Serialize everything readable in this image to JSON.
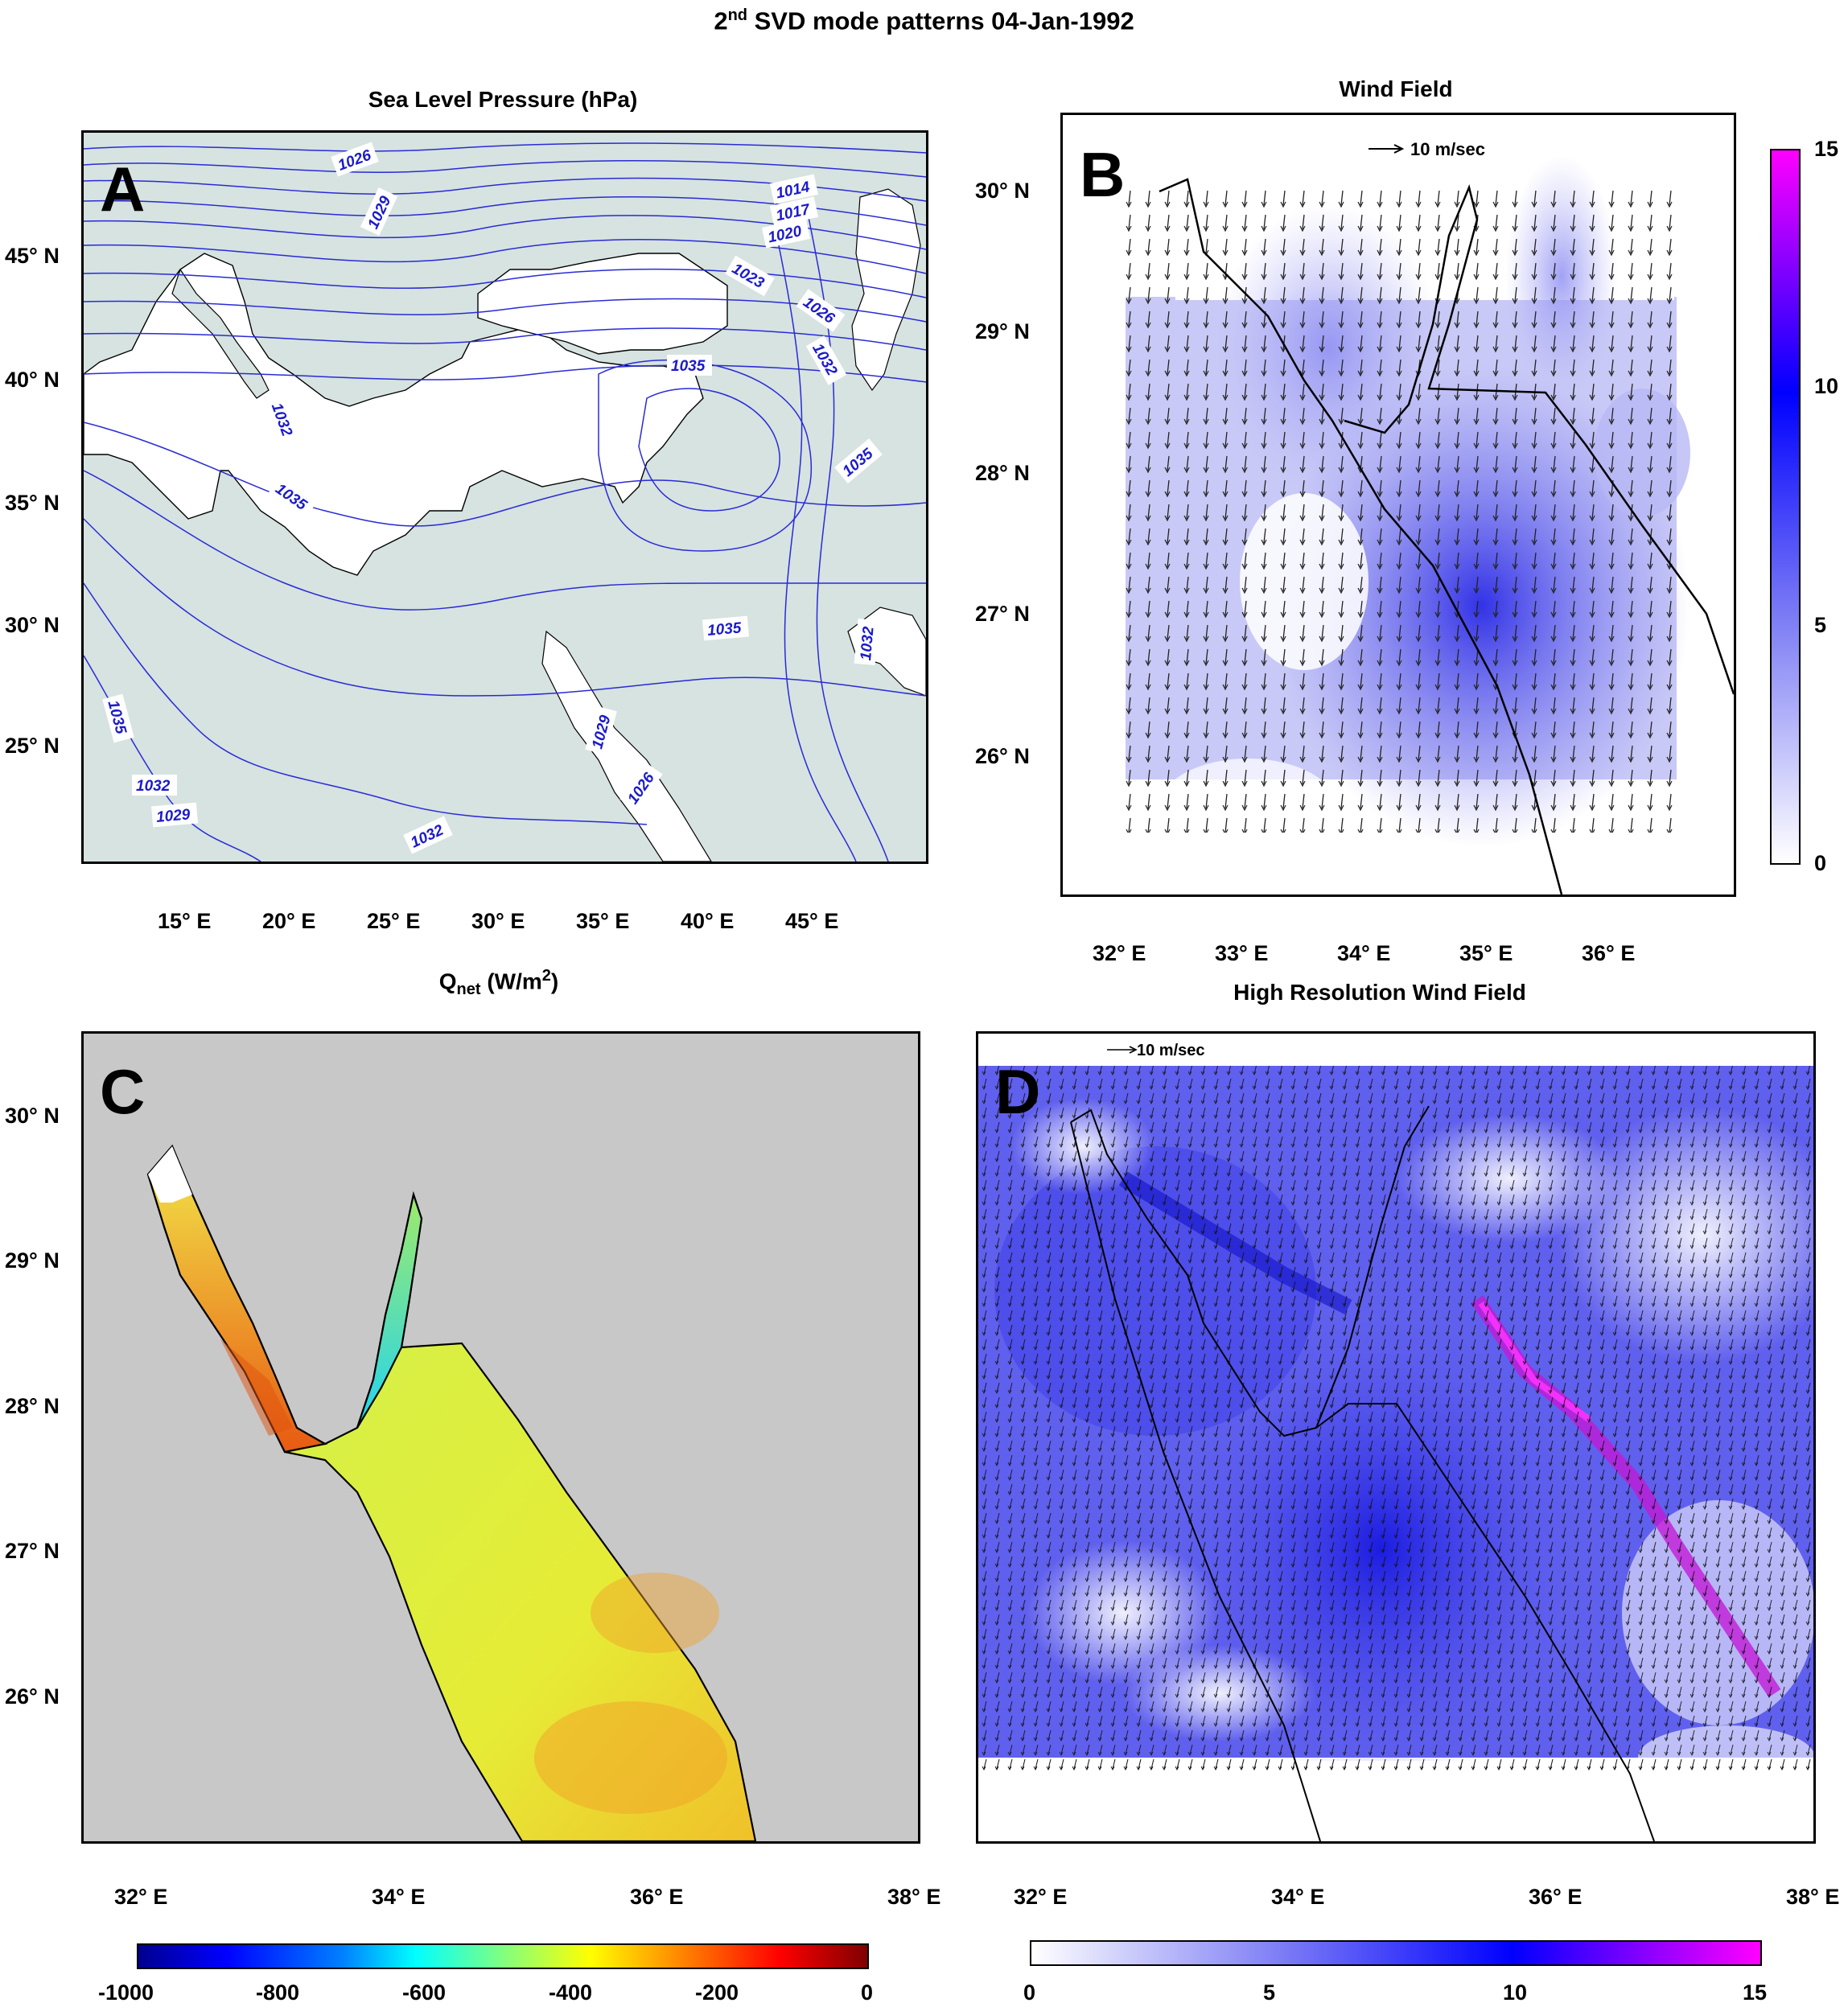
{
  "figure": {
    "title_main": "2",
    "title_sup": "nd",
    "title_rest": " SVD mode patterns 04-Jan-1992"
  },
  "panel_a": {
    "letter": "A",
    "title": "Sea Level Pressure (hPa)",
    "lat_ticks": [
      "45° N",
      "40° N",
      "35° N",
      "30° N",
      "25° N"
    ],
    "lon_ticks": [
      "15° E",
      "20° E",
      "25° E",
      "30° E",
      "35° E",
      "40° E",
      "45° E"
    ],
    "contour_labels": [
      "1026",
      "1029",
      "1014",
      "1017",
      "1020",
      "1023",
      "1026",
      "1032",
      "1035",
      "1032",
      "1035",
      "1035",
      "1035",
      "1032",
      "1035",
      "1032",
      "1029",
      "1029",
      "1026",
      "1032"
    ],
    "colors": {
      "land": "#d6e3e0",
      "sea": "#ffffff",
      "contour": "#2a2ad6"
    }
  },
  "panel_b": {
    "letter": "B",
    "title": "Wind Field",
    "scale_label": "10 m/sec",
    "lat_ticks": [
      "30° N",
      "29° N",
      "28° N",
      "27° N",
      "26° N"
    ],
    "lon_ticks": [
      "32° E",
      "33° E",
      "34° E",
      "35° E",
      "36° E"
    ],
    "colorbar": {
      "min": 0,
      "max": 15,
      "ticks": [
        "15",
        "10",
        "5",
        "0"
      ],
      "colors": [
        "#ffffff",
        "#0000ff",
        "#ff00ff"
      ]
    }
  },
  "panel_c": {
    "letter": "C",
    "title_main": "Q",
    "title_sub": "net",
    "title_unit": " (W/m",
    "title_sup": "2",
    "title_end": ")",
    "lat_ticks": [
      "30° N",
      "29° N",
      "28° N",
      "27° N",
      "26° N"
    ],
    "lon_ticks": [
      "32° E",
      "34° E",
      "36° E",
      "38° E"
    ],
    "colorbar": {
      "min": -1000,
      "max": 0,
      "ticks": [
        "-1000",
        "-800",
        "-600",
        "-400",
        "-200",
        "0"
      ]
    },
    "colors": {
      "background": "#c8c8c8"
    }
  },
  "panel_d": {
    "letter": "D",
    "title": "High Resolution Wind Field",
    "scale_label": "10 m/sec",
    "lat_ticks": [],
    "lon_ticks": [
      "32° E",
      "34° E",
      "36° E",
      "38° E"
    ],
    "colorbar": {
      "min": 0,
      "max": 15,
      "ticks": [
        "0",
        "5",
        "10",
        "15"
      ]
    }
  }
}
